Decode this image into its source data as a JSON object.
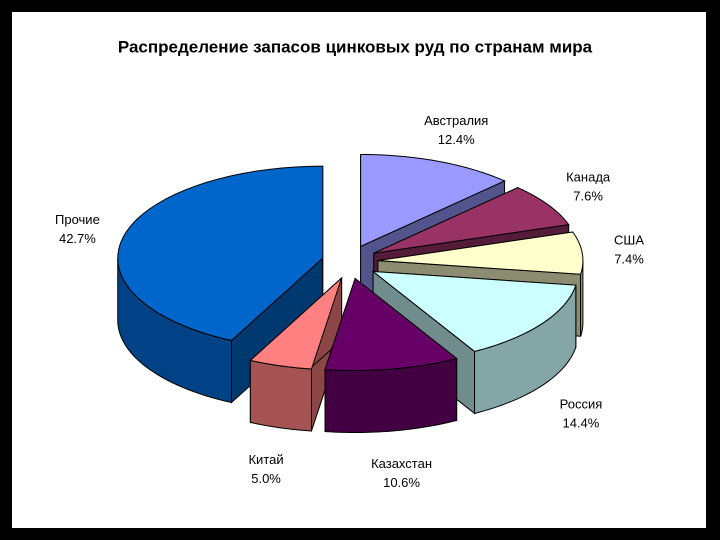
{
  "chart_data": {
    "type": "pie3d",
    "title": "Распределение запасов цинковых руд по странам мира",
    "categories": [
      "Австралия",
      "Канада",
      "США",
      "Россия",
      "Казахстан",
      "Китай",
      "Прочие"
    ],
    "values": [
      12.4,
      7.6,
      7.4,
      14.4,
      10.6,
      5.0,
      42.7
    ],
    "value_labels": [
      "12.4%",
      "7.6%",
      "7.4%",
      "14.4%",
      "10.6%",
      "5.0%",
      "42.7%"
    ],
    "colors": [
      "#9999ff",
      "#993366",
      "#ffffcc",
      "#ccffff",
      "#660066",
      "#ff8080",
      "#0066cc"
    ]
  }
}
